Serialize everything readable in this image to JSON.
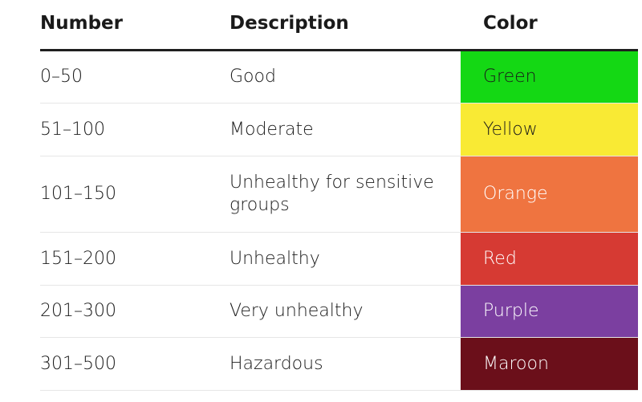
{
  "table": {
    "header": [
      "Number",
      "Description",
      "Color"
    ],
    "rows": [
      [
        "0–50",
        "Good",
        "Green"
      ],
      [
        "51–100",
        "Moderate",
        "Yellow"
      ],
      [
        "101–150",
        "Unhealthy for sensitive groups",
        "Orange"
      ],
      [
        "151–200",
        "Unhealthy",
        "Red"
      ],
      [
        "201–300",
        "Very unhealthy",
        "Purple"
      ],
      [
        "301–500",
        "Hazardous",
        "Maroon"
      ]
    ]
  }
}
